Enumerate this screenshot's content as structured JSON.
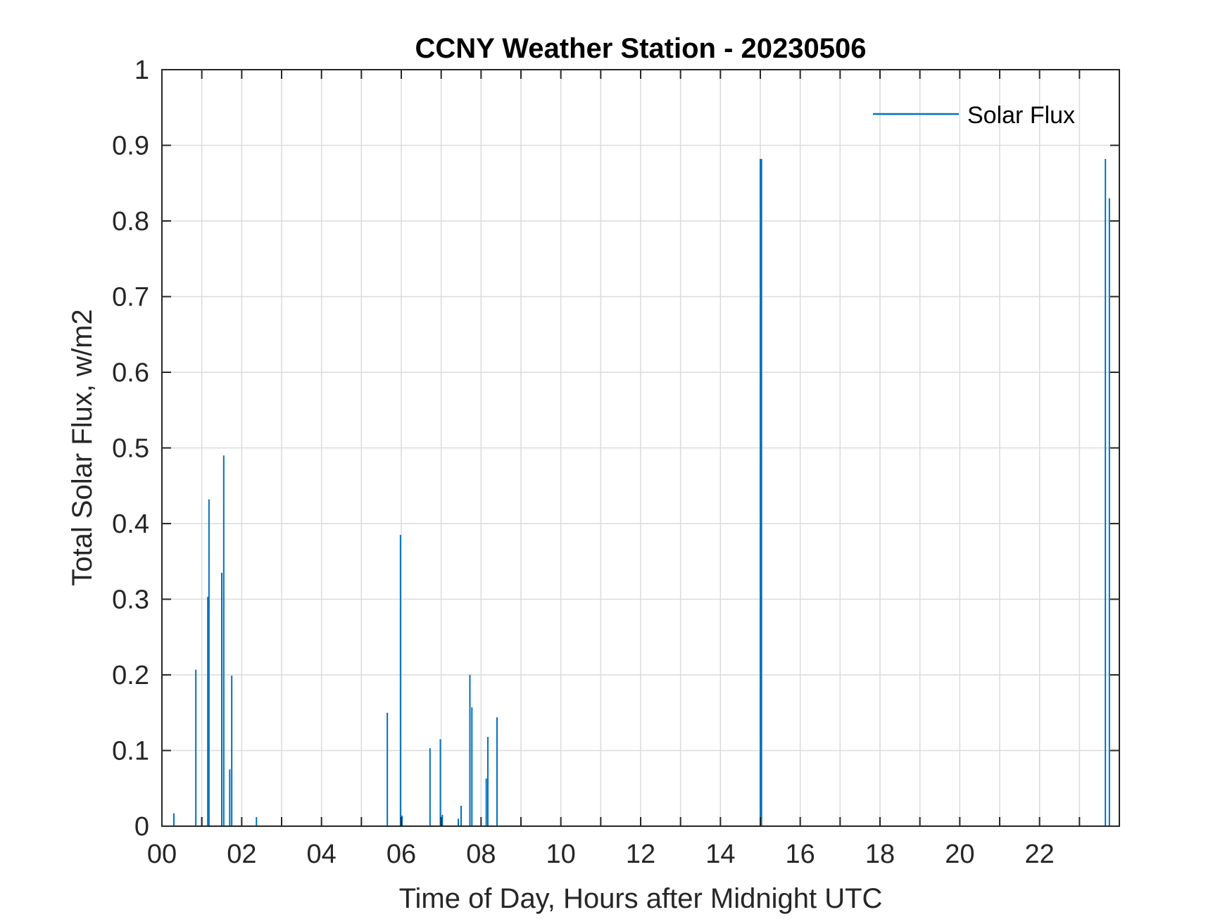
{
  "chart_data": {
    "type": "bar",
    "title": "CCNY Weather Station - 20230506",
    "xlabel": "Time of Day, Hours after Midnight UTC",
    "ylabel": "Total Solar Flux, w/m2",
    "xlim": [
      0,
      24
    ],
    "ylim": [
      0,
      1
    ],
    "x_ticks": [
      0,
      2,
      4,
      6,
      8,
      10,
      12,
      14,
      16,
      18,
      20,
      22
    ],
    "x_tick_labels": [
      "00",
      "02",
      "04",
      "06",
      "08",
      "10",
      "12",
      "14",
      "16",
      "18",
      "20",
      "22"
    ],
    "y_ticks": [
      0,
      0.1,
      0.2,
      0.3,
      0.4,
      0.5,
      0.6,
      0.7,
      0.8,
      0.9,
      1
    ],
    "y_tick_labels": [
      "0",
      "0.1",
      "0.2",
      "0.3",
      "0.4",
      "0.5",
      "0.6",
      "0.7",
      "0.8",
      "0.9",
      "1"
    ],
    "grid": true,
    "legend_position": "top-right",
    "series": [
      {
        "name": "Solar Flux",
        "color": "#0072BD",
        "x": [
          0.3,
          0.85,
          1.0,
          1.15,
          1.18,
          1.5,
          1.55,
          1.7,
          1.75,
          2.37,
          5.65,
          5.98,
          6.02,
          6.72,
          6.98,
          7.03,
          7.43,
          7.5,
          7.72,
          7.77,
          8.13,
          8.17,
          8.4,
          15.0,
          15.03,
          23.65,
          23.75
        ],
        "values": [
          0.017,
          0.207,
          0.012,
          0.303,
          0.432,
          0.335,
          0.49,
          0.075,
          0.199,
          0.012,
          0.15,
          0.385,
          0.014,
          0.103,
          0.115,
          0.015,
          0.01,
          0.027,
          0.2,
          0.157,
          0.063,
          0.118,
          0.144,
          0.882,
          0.882,
          0.882,
          0.83
        ]
      }
    ]
  }
}
